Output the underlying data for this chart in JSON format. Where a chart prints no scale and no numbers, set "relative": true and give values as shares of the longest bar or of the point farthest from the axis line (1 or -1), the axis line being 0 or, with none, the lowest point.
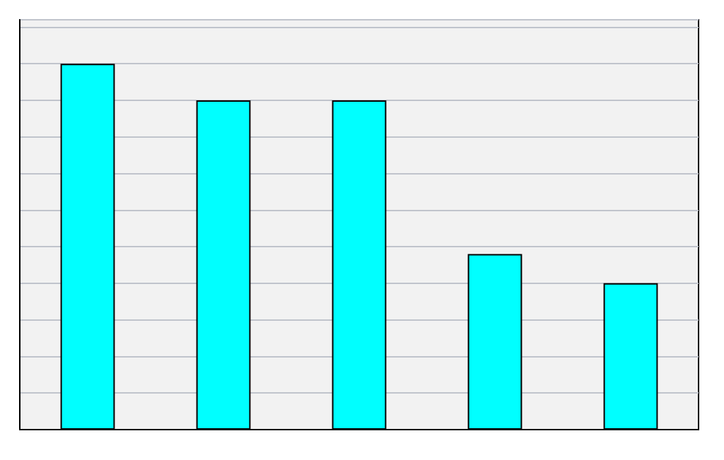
{
  "chart_data": {
    "type": "bar",
    "relative": true,
    "categories": [
      null,
      null,
      null,
      null,
      null
    ],
    "values": [
      1,
      0.9,
      0.9,
      0.48,
      0.4
    ],
    "color": "#00ffff",
    "grid": "y"
  }
}
